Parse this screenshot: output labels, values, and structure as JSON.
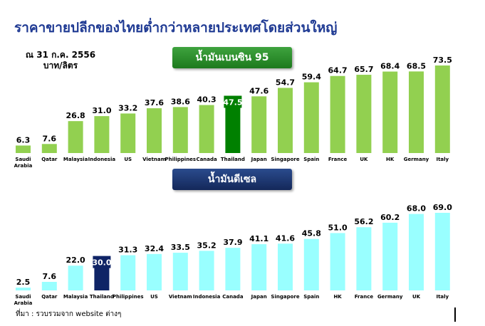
{
  "title": "ราคาขายปลีกของไทยต่ำกว่าหลายประเทศโดยส่วนใหญ่",
  "date_line1": "ณ 31 ก.ค. 2556",
  "date_line2": "บาท/ลิตร",
  "source": "ที่มา : รวบรวมจาก website ต่างๆ",
  "colors": {
    "benzine_bar": "#92d050",
    "benzine_highlight": "#008000",
    "diesel_bar": "#99ffff",
    "diesel_highlight": "#0f2466"
  },
  "chart_data": [
    {
      "type": "bar",
      "title": "น้ำมันเบนซิน 95",
      "categories": [
        "Saudi Arabia",
        "Qatar",
        "Malaysia",
        "Indonesia",
        "US",
        "Vietnam",
        "Philippines",
        "Canada",
        "Thailand",
        "Japan",
        "Singapore",
        "Spain",
        "France",
        "UK",
        "HK",
        "Germany",
        "Italy"
      ],
      "values": [
        6.3,
        7.6,
        26.8,
        31.0,
        33.2,
        37.6,
        38.6,
        40.3,
        47.5,
        47.6,
        54.7,
        59.4,
        64.7,
        65.7,
        68.4,
        68.5,
        73.5
      ],
      "labels": [
        "6.3",
        "7.6",
        "26.8",
        "31.0",
        "33.2",
        "37.6",
        "38.6",
        "40.3",
        "47.5",
        "47.6",
        "54.7",
        "59.4",
        "64.7",
        "65.7",
        "68.4",
        "68.5",
        "73.5"
      ],
      "highlight": "Thailand",
      "ylim": [
        0,
        80
      ]
    },
    {
      "type": "bar",
      "title": "น้ำมันดีเซล",
      "categories": [
        "Saudi Arabia",
        "Qatar",
        "Malaysia",
        "Thailand",
        "Philippines",
        "US",
        "Vietnam",
        "Indonesia",
        "Canada",
        "Japan",
        "Singapore",
        "Spain",
        "HK",
        "France",
        "Germany",
        "UK",
        "Italy"
      ],
      "values": [
        2.5,
        7.6,
        22.0,
        30.0,
        31.3,
        32.4,
        33.5,
        35.2,
        37.9,
        41.1,
        41.6,
        45.8,
        51.0,
        56.2,
        60.2,
        68.0,
        69.0
      ],
      "labels": [
        "2.5",
        "7.6",
        "22.0",
        "30.0",
        "31.3",
        "32.4",
        "33.5",
        "35.2",
        "37.9",
        "41.1",
        "41.6",
        "45.8",
        "51.0",
        "56.2",
        "60.2",
        "68.0",
        "69.0"
      ],
      "highlight": "Thailand",
      "ylim": [
        0,
        75
      ]
    }
  ]
}
